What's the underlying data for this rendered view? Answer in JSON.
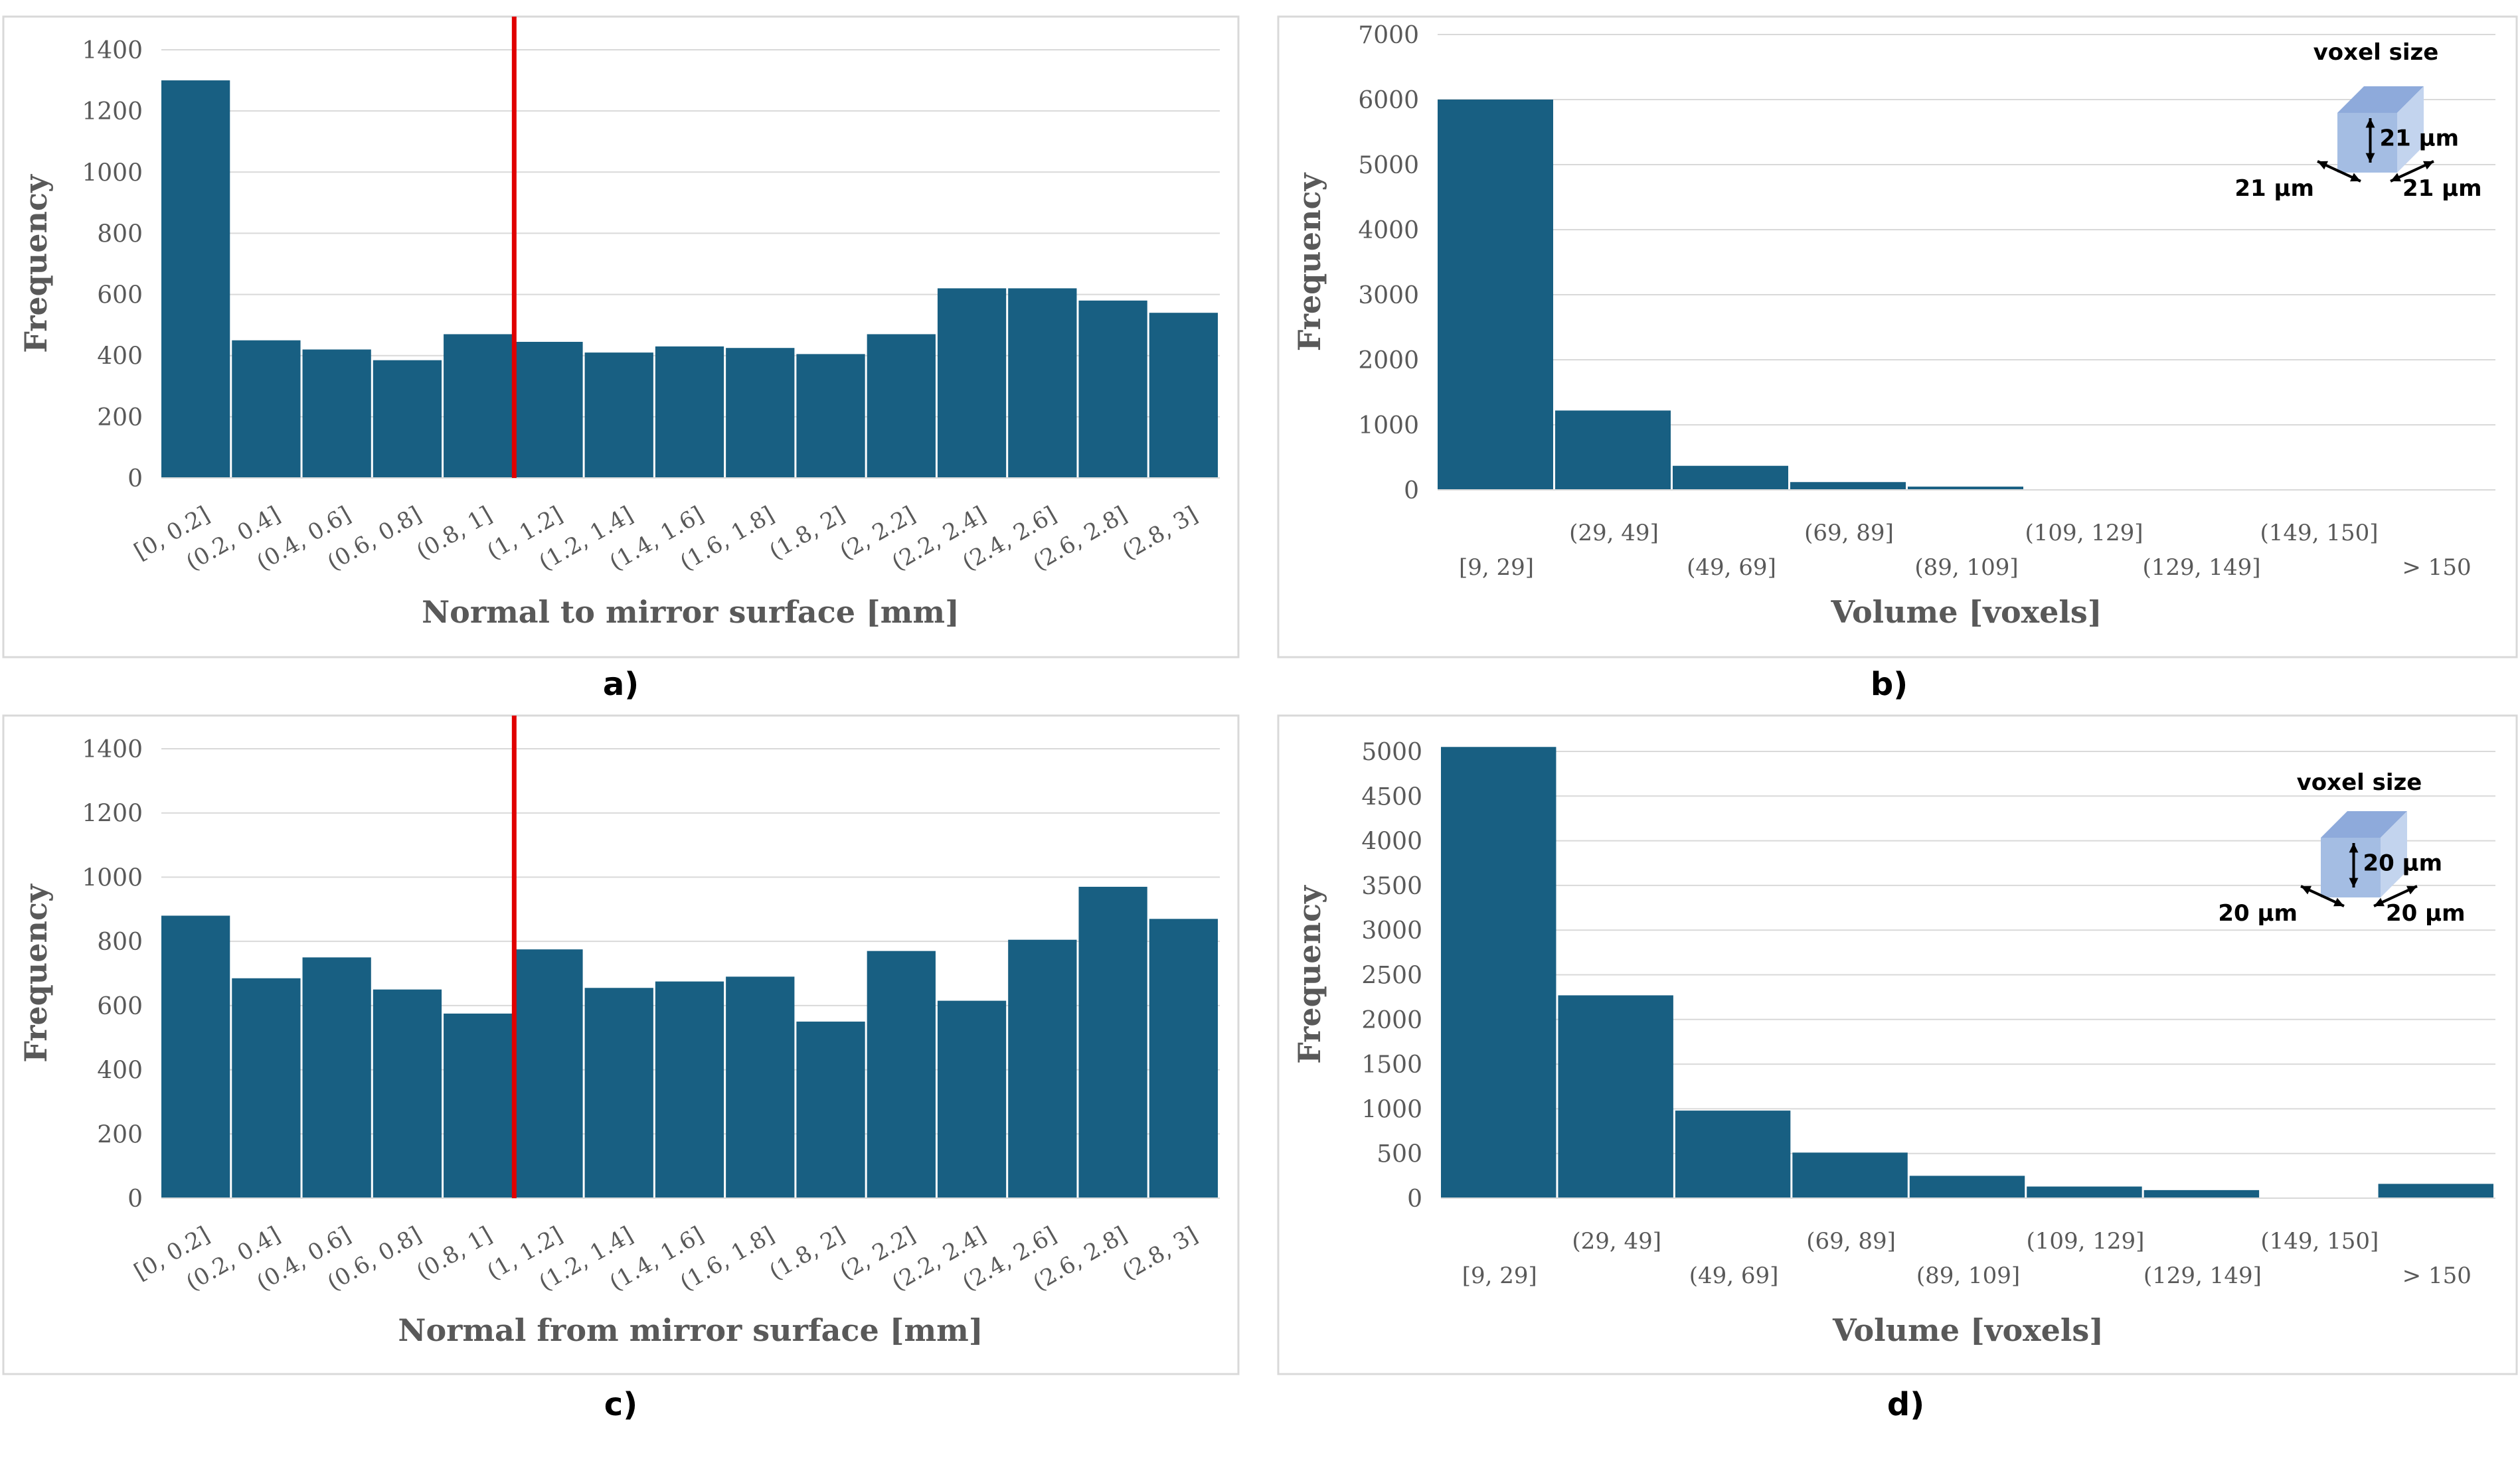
{
  "chart_data": [
    {
      "panel_label": "a)",
      "type": "bar",
      "xlabel": "Normal to mirror surface [mm]",
      "ylabel": "Frequency",
      "ylim": [
        0,
        1400
      ],
      "yticks": [
        0,
        200,
        400,
        600,
        800,
        1000,
        1200,
        1400
      ],
      "categories": [
        "[0, 0.2]",
        "(0.2, 0.4]",
        "(0.4, 0.6]",
        "(0.6, 0.8]",
        "(0.8, 1]",
        "(1, 1.2]",
        "(1.2, 1.4]",
        "(1.4, 1.6]",
        "(1.6, 1.8]",
        "(1.8, 2]",
        "(2, 2.2]",
        "(2.2, 2.4]",
        "(2.4, 2.6]",
        "(2.6, 2.8]",
        "(2.8, 3]"
      ],
      "values": [
        1300,
        450,
        420,
        385,
        470,
        445,
        410,
        430,
        425,
        405,
        470,
        620,
        620,
        580,
        540
      ],
      "reference_line": {
        "x": 1.0,
        "color": "#e00000"
      },
      "bar_color": "#185f82",
      "grid": true
    },
    {
      "panel_label": "b)",
      "type": "bar",
      "xlabel": "Volume [voxels]",
      "ylabel": "Frequency",
      "ylim": [
        0,
        7000
      ],
      "yticks": [
        0,
        1000,
        2000,
        3000,
        4000,
        5000,
        6000,
        7000
      ],
      "categories": [
        "[9, 29]",
        "(29, 49]",
        "(49, 69]",
        "(69, 89]",
        "(89, 109]",
        "(109, 129]",
        "(129, 149]",
        "(149, 150]",
        "> 150"
      ],
      "values": [
        6000,
        1220,
        370,
        120,
        50,
        0,
        0,
        0,
        0
      ],
      "bar_color": "#185f82",
      "grid": true,
      "inset": {
        "title": "voxel size",
        "labels": [
          "21 μm",
          "21 μm",
          "21 μm"
        ]
      }
    },
    {
      "panel_label": "c)",
      "type": "bar",
      "xlabel": "Normal from mirror surface [mm]",
      "ylabel": "Frequency",
      "ylim": [
        0,
        1400
      ],
      "yticks": [
        0,
        200,
        400,
        600,
        800,
        1000,
        1200,
        1400
      ],
      "categories": [
        "[0, 0.2]",
        "(0.2, 0.4]",
        "(0.4, 0.6]",
        "(0.6, 0.8]",
        "(0.8, 1]",
        "(1, 1.2]",
        "(1.2, 1.4]",
        "(1.4, 1.6]",
        "(1.6, 1.8]",
        "(1.8, 2]",
        "(2, 2.2]",
        "(2.2, 2.4]",
        "(2.4, 2.6]",
        "(2.6, 2.8]",
        "(2.8, 3]"
      ],
      "values": [
        880,
        685,
        750,
        650,
        575,
        775,
        655,
        675,
        690,
        550,
        770,
        615,
        805,
        970,
        870
      ],
      "reference_line": {
        "x": 1.0,
        "color": "#e00000"
      },
      "bar_color": "#185f82",
      "grid": true
    },
    {
      "panel_label": "d)",
      "type": "bar",
      "xlabel": "Volume [voxels]",
      "ylabel": "Frequency",
      "ylim": [
        0,
        5000
      ],
      "yticks": [
        0,
        500,
        1000,
        1500,
        2000,
        2500,
        3000,
        3500,
        4000,
        4500,
        5000
      ],
      "categories": [
        "[9, 29]",
        "(29, 49]",
        "(49, 69]",
        "(69, 89]",
        "(89, 109]",
        "(109, 129]",
        "(129, 149]",
        "(149, 150]",
        "> 150"
      ],
      "values": [
        5050,
        2270,
        980,
        510,
        250,
        130,
        90,
        0,
        160
      ],
      "bar_color": "#185f82",
      "grid": true,
      "inset": {
        "title": "voxel size",
        "labels": [
          "20 μm",
          "20 μm",
          "20 μm"
        ]
      }
    }
  ]
}
